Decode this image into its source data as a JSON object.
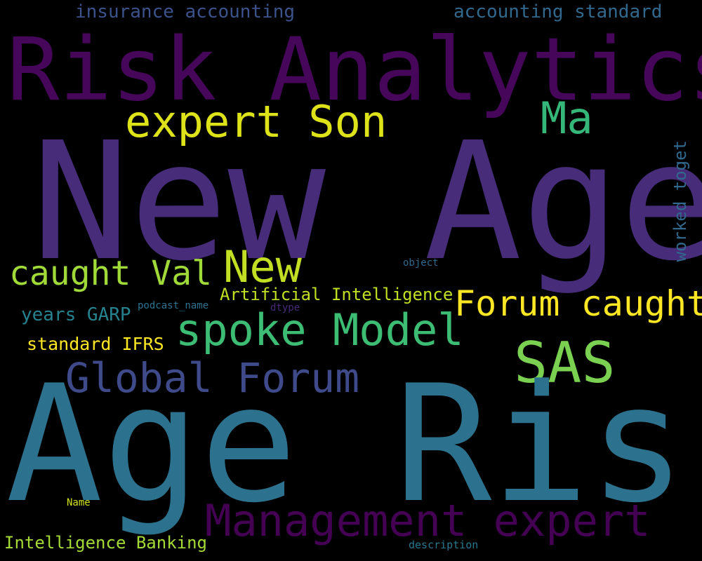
{
  "words": [
    {
      "id": "new-age",
      "text": "New Age",
      "color": "#472c7a"
    },
    {
      "id": "age-risk",
      "text": "Age Risk",
      "color": "#2c728e"
    },
    {
      "id": "risk-analytics",
      "text": "Risk Analytics",
      "color": "#46075a"
    },
    {
      "id": "expert-son",
      "text": "expert Son",
      "color": "#dde318"
    },
    {
      "id": "ma",
      "text": "Ma",
      "color": "#35b779"
    },
    {
      "id": "insurance",
      "text": "insurance accounting",
      "color": "#3b528b"
    },
    {
      "id": "acc-std",
      "text": "accounting standard",
      "color": "#31688e"
    },
    {
      "id": "worked",
      "text": "worked toget",
      "color": "#31688e"
    },
    {
      "id": "new",
      "text": "New",
      "color": "#c2df23"
    },
    {
      "id": "caught-val",
      "text": "caught Val",
      "color": "#a0da39"
    },
    {
      "id": "object",
      "text": "object",
      "color": "#31688e"
    },
    {
      "id": "ai",
      "text": "Artificial Intelligence",
      "color": "#c2df23"
    },
    {
      "id": "forum-caught",
      "text": "Forum caught",
      "color": "#fde725"
    },
    {
      "id": "podcast",
      "text": "podcast_name",
      "color": "#2c728e"
    },
    {
      "id": "dtype",
      "text": "dtype",
      "color": "#482878"
    },
    {
      "id": "years",
      "text": "years GARP",
      "color": "#26828e"
    },
    {
      "id": "spoke",
      "text": "spoke Model",
      "color": "#3dbc74"
    },
    {
      "id": "sas",
      "text": "SAS",
      "color": "#7ad151"
    },
    {
      "id": "std-ifrs",
      "text": "standard IFRS",
      "color": "#fde725"
    },
    {
      "id": "global",
      "text": "Global Forum",
      "color": "#3e4a89"
    },
    {
      "id": "mgmt",
      "text": "Management expert",
      "color": "#440154"
    },
    {
      "id": "name",
      "text": "Name",
      "color": "#d0e11c"
    },
    {
      "id": "intel-bank",
      "text": "Intelligence Banking",
      "color": "#a5db36"
    },
    {
      "id": "description",
      "text": "description",
      "color": "#2a788e"
    }
  ]
}
